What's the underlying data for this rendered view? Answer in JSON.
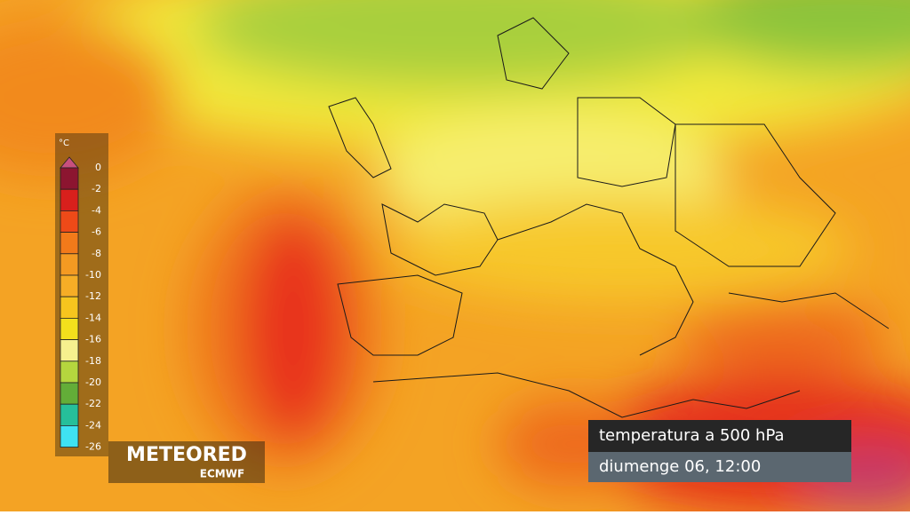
{
  "legend": {
    "unit": "°C",
    "ticks": [
      0,
      -2,
      -4,
      -6,
      -8,
      -10,
      -12,
      -14,
      -16,
      -18,
      -20,
      -22,
      -24,
      -26
    ],
    "over_color": "#c8507e",
    "colors": [
      "#8c1530",
      "#d8201c",
      "#ee4a18",
      "#f27a1a",
      "#f49a22",
      "#f6ad26",
      "#f6c51e",
      "#f3e01c",
      "#f6f08e",
      "#b5d63e",
      "#63ad38",
      "#26bf9a",
      "#3fe2f2"
    ]
  },
  "brand": {
    "name": "METEORED",
    "source": "ECMWF"
  },
  "info": {
    "title": "temperatura a 500 hPa",
    "time": "diumenge 06, 12:00"
  }
}
